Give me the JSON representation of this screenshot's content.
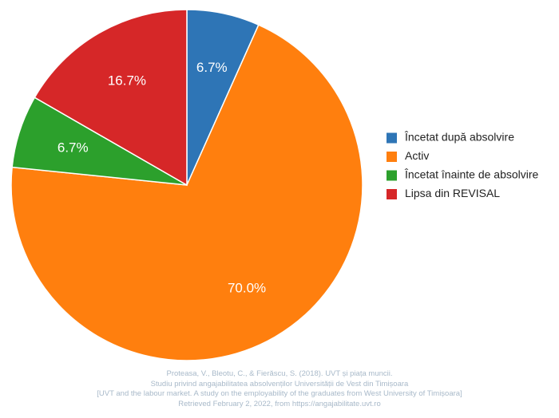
{
  "chart_data": {
    "type": "pie",
    "start_angle_deg": 0,
    "direction": "clockwise",
    "legend_position": "right",
    "slices": [
      {
        "label": "Încetat după absolvire",
        "value": 6.7,
        "display": "6.7%",
        "color": "#2e75b6"
      },
      {
        "label": "Activ",
        "value": 70.0,
        "display": "70.0%",
        "color": "#ff7f0e"
      },
      {
        "label": "Încetat înainte de absolvire",
        "value": 6.7,
        "display": "6.7%",
        "color": "#2ca02c"
      },
      {
        "label": "Lipsa din REVISAL",
        "value": 16.7,
        "display": "16.7%",
        "color": "#d62728"
      }
    ]
  },
  "citation": {
    "line1": "Proteasa, V., Bleotu, C., & Fierăscu, S. (2018). UVT și piața muncii.",
    "line2": "Studiu privind angajabilitatea absolvenților Universității de Vest din Timișoara",
    "line3": "[UVT and the labour market. A study on the employability of the graduates from West University of Timișoara]",
    "line4": "Retrieved February 2, 2022, from https://angajabilitate.uvt.ro"
  }
}
